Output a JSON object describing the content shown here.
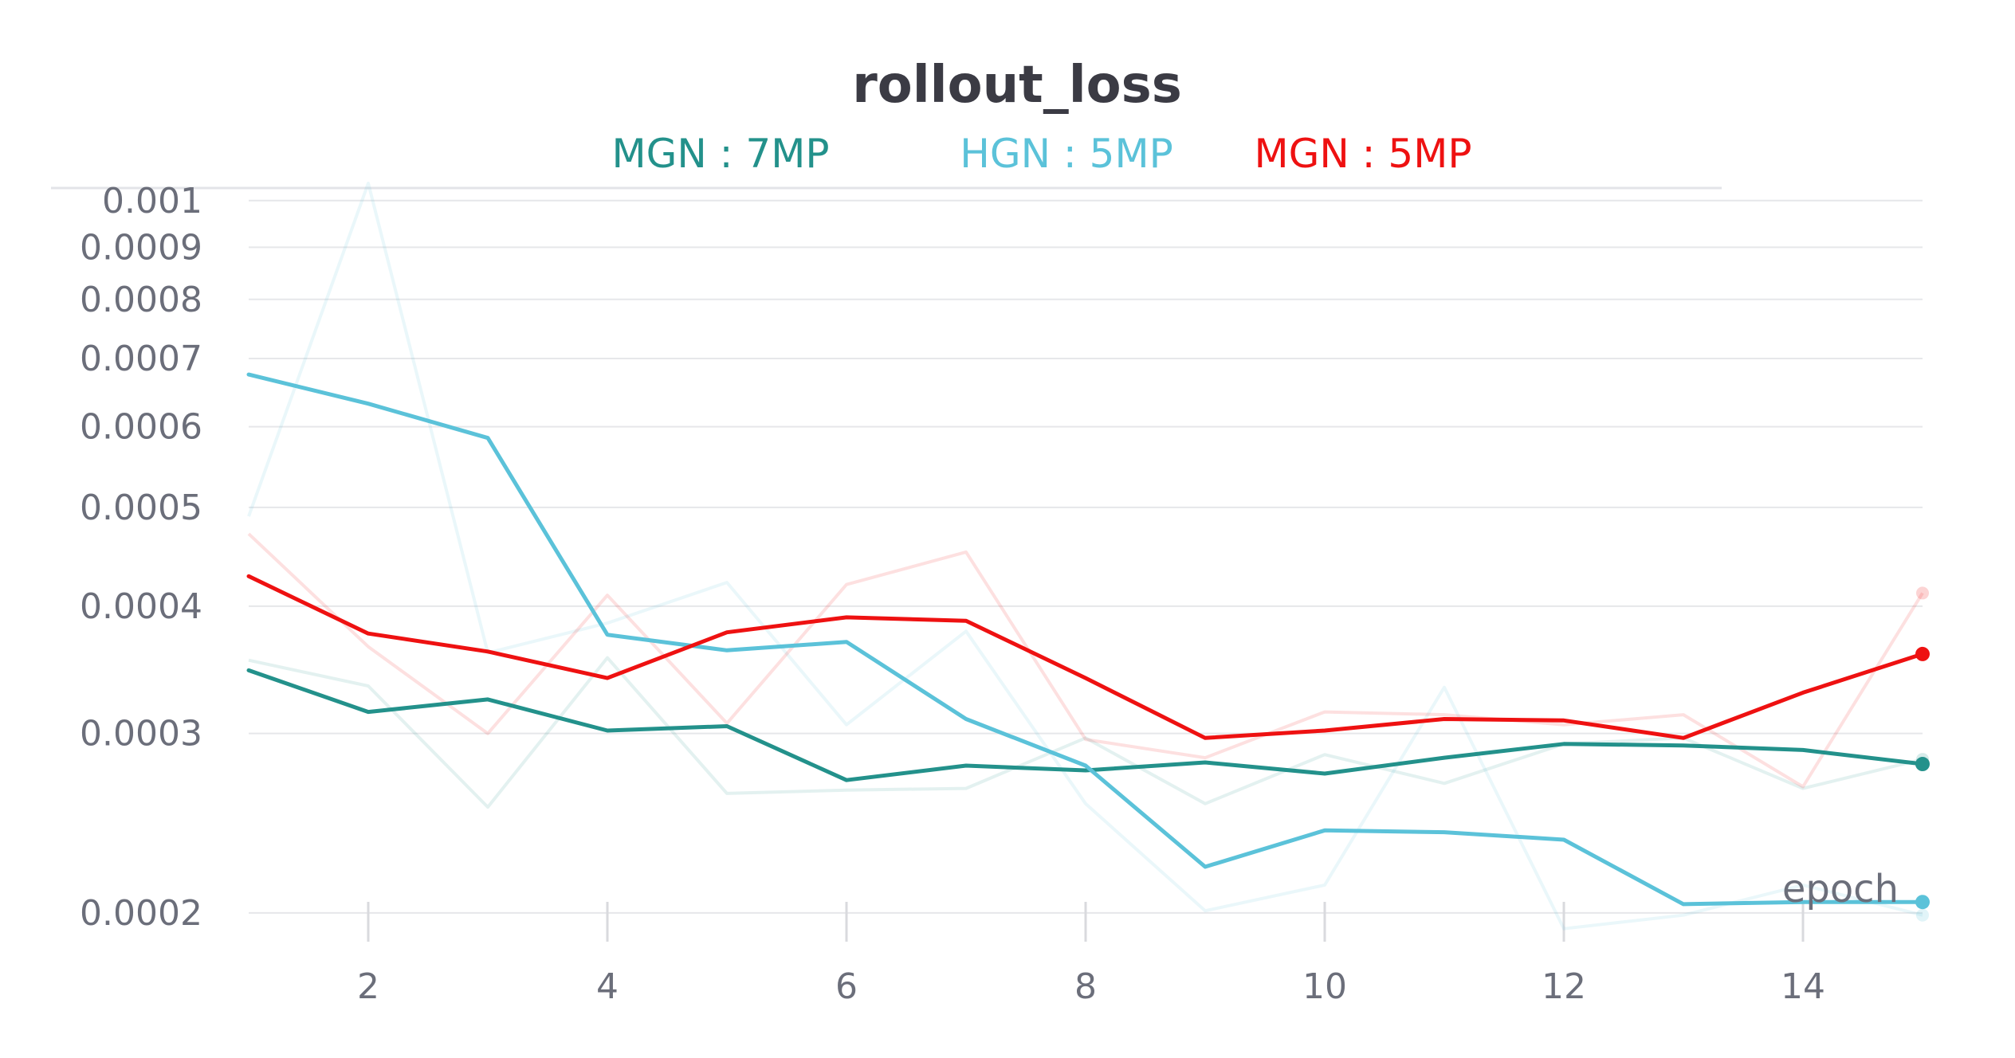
{
  "chart_data": {
    "type": "line",
    "title": "rollout_loss",
    "xlabel": "epoch",
    "ylabel": "",
    "y_scale": "log",
    "xlim": [
      1,
      15
    ],
    "ylim": [
      0.000195,
      0.00104
    ],
    "x_ticks": [
      "2",
      "4",
      "6",
      "8",
      "10",
      "12",
      "14"
    ],
    "y_ticks": [
      "0.001",
      "0.0009",
      "0.0008",
      "0.0007",
      "0.0006",
      "0.0005",
      "0.0004",
      "0.0003",
      "0.0002"
    ],
    "grid": true,
    "legend_position": "top-center",
    "x": [
      1,
      2,
      3,
      4,
      5,
      6,
      7,
      8,
      9,
      10,
      11,
      12,
      13,
      14,
      15
    ],
    "series": [
      {
        "name": "MGN : 7MP",
        "color": "#23918b",
        "values": [
          0.000346,
          0.000315,
          0.000324,
          0.000302,
          0.000305,
          0.00027,
          0.000279,
          0.000276,
          0.000281,
          0.000274,
          0.000284,
          0.000293,
          0.000292,
          0.000289,
          0.00028
        ],
        "raw_values": [
          0.000354,
          0.000334,
          0.000254,
          0.000356,
          0.000262,
          0.000264,
          0.000265,
          0.000297,
          0.000256,
          0.000286,
          0.000268,
          0.000293,
          0.000297,
          0.000265,
          0.000283
        ]
      },
      {
        "name": "HGN : 5MP",
        "color": "#5bc2d9",
        "values": [
          0.000675,
          0.000632,
          0.000585,
          0.000375,
          0.000362,
          0.000369,
          0.00031,
          0.000279,
          0.000222,
          0.000241,
          0.00024,
          0.000236,
          0.000204,
          0.000205,
          0.000205
        ],
        "raw_values": [
          0.00049,
          0.00104,
          0.00036,
          0.000385,
          0.000422,
          0.000306,
          0.000378,
          0.000256,
          0.000201,
          0.000213,
          0.000333,
          0.000193,
          0.000199,
          0.000213,
          0.000199
        ]
      },
      {
        "name": "MGN : 5MP",
        "color": "#ee1111",
        "values": [
          0.000428,
          0.000376,
          0.000361,
          0.00034,
          0.000377,
          0.00039,
          0.000387,
          0.00034,
          0.000297,
          0.000302,
          0.00031,
          0.000309,
          0.000297,
          0.000329,
          0.000359
        ],
        "raw_values": [
          0.000471,
          0.000365,
          0.0003,
          0.00041,
          0.000307,
          0.00042,
          0.000452,
          0.000296,
          0.000284,
          0.000315,
          0.000313,
          0.000306,
          0.000313,
          0.000266,
          0.000412
        ]
      }
    ]
  }
}
